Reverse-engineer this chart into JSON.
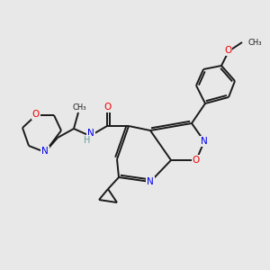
{
  "background_color": "#e8e8e8",
  "bond_color": "#1a1a1a",
  "atom_colors": {
    "N": "#0000ee",
    "O": "#ee0000",
    "H": "#6a9a9a"
  },
  "figsize": [
    3.0,
    3.0
  ],
  "dpi": 100
}
